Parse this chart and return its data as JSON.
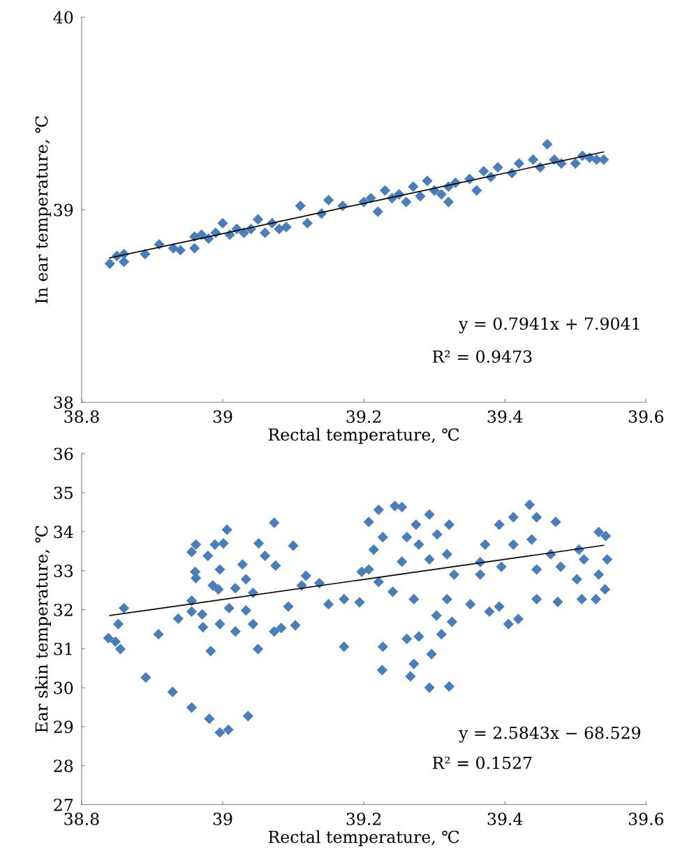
{
  "chart_data": [
    {
      "type": "scatter",
      "xlabel": "Rectal temperature, ℃",
      "ylabel": "In ear temperature, ℃",
      "xlim": [
        38.8,
        39.6
      ],
      "xticks": [
        38.8,
        39,
        39.2,
        39.4,
        39.6
      ],
      "ylim": [
        38,
        40
      ],
      "yticks": [
        38,
        39,
        40
      ],
      "grid": false,
      "legend": false,
      "marker": "diamond",
      "annotations": [
        "y = 0.7941x + 7.9041",
        "R² = 0.9473"
      ],
      "series": [
        {
          "color": "#4a7ebb",
          "x": [
            38.84,
            38.85,
            38.86,
            38.86,
            38.89,
            38.91,
            38.93,
            38.94,
            38.96,
            38.96,
            38.97,
            38.98,
            38.99,
            39.0,
            39.01,
            39.02,
            39.03,
            39.04,
            39.05,
            39.06,
            39.07,
            39.08,
            39.09,
            39.11,
            39.12,
            39.14,
            39.15,
            39.17,
            39.2,
            39.21,
            39.22,
            39.23,
            39.24,
            39.25,
            39.26,
            39.27,
            39.28,
            39.29,
            39.3,
            39.31,
            39.32,
            39.32,
            39.33,
            39.35,
            39.36,
            39.37,
            39.38,
            39.39,
            39.41,
            39.42,
            39.44,
            39.45,
            39.46,
            39.47,
            39.48,
            39.5,
            39.51,
            39.52,
            39.53,
            39.54
          ],
          "values": [
            38.72,
            38.76,
            38.73,
            38.77,
            38.77,
            38.82,
            38.8,
            38.79,
            38.8,
            38.86,
            38.87,
            38.85,
            38.88,
            38.93,
            38.87,
            38.9,
            38.88,
            38.9,
            38.95,
            38.88,
            38.93,
            38.9,
            38.91,
            39.02,
            38.93,
            38.98,
            39.05,
            39.02,
            39.04,
            39.06,
            38.99,
            39.1,
            39.06,
            39.08,
            39.04,
            39.12,
            39.07,
            39.15,
            39.1,
            39.08,
            39.04,
            39.12,
            39.14,
            39.16,
            39.1,
            39.2,
            39.17,
            39.22,
            39.19,
            39.24,
            39.26,
            39.22,
            39.34,
            39.26,
            39.24,
            39.24,
            39.28,
            39.27,
            39.26,
            39.26
          ]
        },
        {
          "type": "line",
          "color": "#000000",
          "marker": "none",
          "x": [
            38.84,
            39.54
          ],
          "values": [
            38.75,
            39.3
          ]
        }
      ]
    },
    {
      "type": "scatter",
      "xlabel": "Rectal temperature, ℃",
      "ylabel": "Ear skin temperature, ℃",
      "xlim": [
        38.8,
        39.6
      ],
      "xticks": [
        38.8,
        39,
        39.2,
        39.4,
        39.6
      ],
      "ylim": [
        27,
        36
      ],
      "yticks": [
        27,
        28,
        29,
        30,
        31,
        32,
        33,
        34,
        35,
        36
      ],
      "grid": false,
      "legend": false,
      "marker": "diamond",
      "annotations": [
        "y = 2.5843x − 68.529",
        "R² = 0.1527"
      ],
      "series": [
        {
          "color": "#4a7ebb",
          "x": [
            38.838,
            38.855,
            38.852,
            38.86,
            38.848,
            38.891,
            38.909,
            38.929,
            38.937,
            38.956,
            38.956,
            38.962,
            38.961,
            38.962,
            38.956,
            38.956,
            38.971,
            38.972,
            38.979,
            38.981,
            38.983,
            38.989,
            38.986,
            38.996,
            38.994,
            38.996,
            38.996,
            39.001,
            39.006,
            39.008,
            39.009,
            39.018,
            39.018,
            39.028,
            39.033,
            39.033,
            39.036,
            39.043,
            39.043,
            39.05,
            39.051,
            39.06,
            39.073,
            39.075,
            39.073,
            39.083,
            39.093,
            39.1,
            39.103,
            39.112,
            39.118,
            39.137,
            39.15,
            39.172,
            39.172,
            39.194,
            39.197,
            39.226,
            39.227,
            39.266,
            39.271,
            39.293,
            39.321,
            39.261,
            39.278,
            39.296,
            39.31,
            39.325,
            39.303,
            39.207,
            39.221,
            39.244,
            39.254,
            39.214,
            39.207,
            39.221,
            39.241,
            39.271,
            39.274,
            39.293,
            39.278,
            39.304,
            39.321,
            39.293,
            39.318,
            39.328,
            39.318,
            39.351,
            39.365,
            39.372,
            39.378,
            39.392,
            39.405,
            39.419,
            39.392,
            39.412,
            39.412,
            39.435,
            39.445,
            39.438,
            39.445,
            39.445,
            39.472,
            39.465,
            39.475,
            39.505,
            39.502,
            39.509,
            39.529,
            39.533,
            39.543,
            39.545,
            39.542,
            39.533,
            39.254,
            39.261,
            39.227,
            39.365,
            39.395,
            39.479,
            39.512
          ],
          "values": [
            31.27,
            30.99,
            31.63,
            32.04,
            31.18,
            30.26,
            31.37,
            29.89,
            31.77,
            29.49,
            33.48,
            33.67,
            32.97,
            32.81,
            32.23,
            31.95,
            31.88,
            31.55,
            33.38,
            29.2,
            30.94,
            33.67,
            32.62,
            33.03,
            32.52,
            31.63,
            28.85,
            33.7,
            34.05,
            28.92,
            32.04,
            32.55,
            31.44,
            33.16,
            32.78,
            31.98,
            29.27,
            31.63,
            32.43,
            30.99,
            33.7,
            33.38,
            34.23,
            33.13,
            31.44,
            31.53,
            32.08,
            33.64,
            31.6,
            32.62,
            32.87,
            32.68,
            32.14,
            32.27,
            31.05,
            32.19,
            32.97,
            30.45,
            31.05,
            30.29,
            30.61,
            30.0,
            30.03,
            31.25,
            31.31,
            30.86,
            31.37,
            31.69,
            31.85,
            34.25,
            34.56,
            34.66,
            34.63,
            33.54,
            33.03,
            32.71,
            32.46,
            32.27,
            34.18,
            34.44,
            33.67,
            33.93,
            34.18,
            33.29,
            33.42,
            32.9,
            32.27,
            32.14,
            32.9,
            33.67,
            31.95,
            32.08,
            31.63,
            31.76,
            34.18,
            34.37,
            33.67,
            34.69,
            34.37,
            33.8,
            33.03,
            32.27,
            34.25,
            33.42,
            32.2,
            33.54,
            32.78,
            32.27,
            32.27,
            33.99,
            33.89,
            33.29,
            32.52,
            32.9,
            33.23,
            33.86,
            33.86,
            33.22,
            33.1,
            33.1,
            33.29
          ]
        },
        {
          "type": "line",
          "color": "#000000",
          "marker": "none",
          "x": [
            38.84,
            39.54
          ],
          "values": [
            31.85,
            33.65
          ]
        }
      ]
    }
  ]
}
